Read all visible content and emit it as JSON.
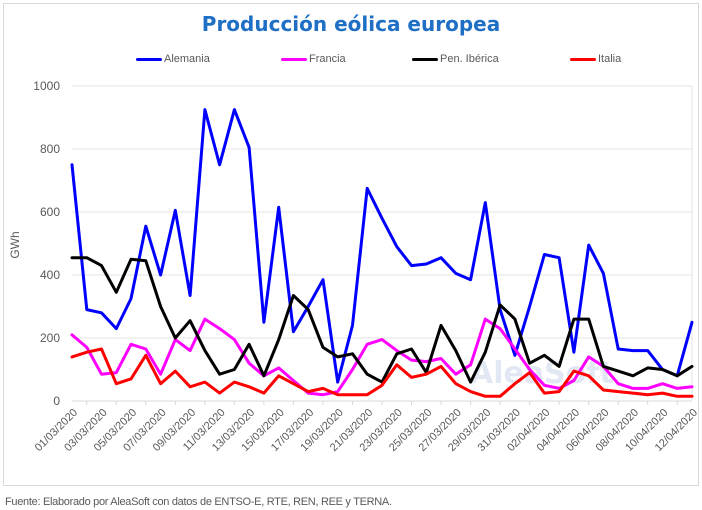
{
  "chart_data": {
    "type": "line",
    "title": "Producción eólica europea",
    "xlabel": "",
    "ylabel": "GWh",
    "ylim": [
      0,
      1000
    ],
    "yticks": [
      0,
      200,
      400,
      600,
      800,
      1000
    ],
    "grid": true,
    "legend_position": "top",
    "x": [
      "01/03/2020",
      "02/03/2020",
      "03/03/2020",
      "04/03/2020",
      "05/03/2020",
      "06/03/2020",
      "07/03/2020",
      "08/03/2020",
      "09/03/2020",
      "10/03/2020",
      "11/03/2020",
      "12/03/2020",
      "13/03/2020",
      "14/03/2020",
      "15/03/2020",
      "16/03/2020",
      "17/03/2020",
      "18/03/2020",
      "19/03/2020",
      "20/03/2020",
      "21/03/2020",
      "22/03/2020",
      "23/03/2020",
      "24/03/2020",
      "25/03/2020",
      "26/03/2020",
      "27/03/2020",
      "28/03/2020",
      "29/03/2020",
      "30/03/2020",
      "31/03/2020",
      "01/04/2020",
      "02/04/2020",
      "03/04/2020",
      "04/04/2020",
      "05/04/2020",
      "06/04/2020",
      "07/04/2020",
      "08/04/2020",
      "09/04/2020",
      "10/04/2020",
      "11/04/2020",
      "12/04/2020"
    ],
    "xtick_labels": [
      "01/03/2020",
      "03/03/2020",
      "05/03/2020",
      "07/03/2020",
      "09/03/2020",
      "11/03/2020",
      "13/03/2020",
      "15/03/2020",
      "17/03/2020",
      "19/03/2020",
      "21/03/2020",
      "23/03/2020",
      "25/03/2020",
      "27/03/2020",
      "29/03/2020",
      "31/03/2020",
      "02/04/2020",
      "04/04/2020",
      "06/04/2020",
      "08/04/2020",
      "10/04/2020",
      "12/04/2020"
    ],
    "series": [
      {
        "name": "Alemania",
        "color": "#0000ff",
        "values": [
          750,
          290,
          280,
          230,
          325,
          555,
          400,
          605,
          335,
          925,
          750,
          925,
          805,
          250,
          615,
          220,
          300,
          385,
          60,
          240,
          675,
          580,
          490,
          430,
          435,
          455,
          405,
          385,
          630,
          290,
          145,
          300,
          465,
          455,
          155,
          495,
          405,
          165,
          160,
          160,
          100,
          80,
          250
        ]
      },
      {
        "name": "Francia",
        "color": "#ff00ff",
        "values": [
          210,
          170,
          85,
          90,
          180,
          165,
          85,
          195,
          160,
          260,
          230,
          195,
          120,
          80,
          105,
          65,
          25,
          20,
          30,
          100,
          180,
          195,
          160,
          130,
          125,
          135,
          85,
          115,
          260,
          230,
          165,
          100,
          50,
          40,
          65,
          140,
          110,
          55,
          40,
          40,
          55,
          40,
          45
        ]
      },
      {
        "name": "Pen. Ibérica",
        "color": "#000000",
        "values": [
          455,
          455,
          430,
          345,
          450,
          445,
          300,
          200,
          255,
          160,
          85,
          100,
          180,
          80,
          195,
          335,
          290,
          170,
          140,
          150,
          85,
          60,
          150,
          165,
          90,
          240,
          160,
          60,
          155,
          305,
          260,
          120,
          145,
          110,
          260,
          260,
          110,
          95,
          80,
          105,
          100,
          80,
          110
        ]
      },
      {
        "name": "Italia",
        "color": "#ff0000",
        "values": [
          140,
          155,
          165,
          55,
          70,
          145,
          55,
          95,
          45,
          60,
          25,
          60,
          45,
          25,
          80,
          55,
          30,
          40,
          20,
          20,
          20,
          50,
          115,
          75,
          85,
          110,
          55,
          30,
          15,
          15,
          55,
          90,
          25,
          30,
          95,
          80,
          35,
          30,
          25,
          20,
          25,
          15,
          15
        ]
      }
    ]
  },
  "watermark": "AleaSoft",
  "footer": "Fuente: Elaborado por AleaSoft con datos de ENTSO-E, RTE, REN, REE y TERNA."
}
